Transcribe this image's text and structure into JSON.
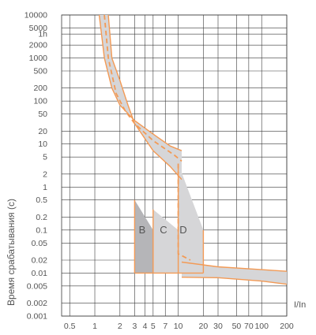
{
  "chart_data": {
    "type": "area",
    "xlabel": "I/In",
    "ylabel": "Время срабатывания (с)",
    "x_scale": "log",
    "y_scale": "log",
    "xlim": [
      0.4,
      200
    ],
    "ylim": [
      0.001,
      10000
    ],
    "grid": true,
    "x_ticks": [
      0.5,
      1,
      2,
      3,
      4,
      5,
      7,
      10,
      20,
      30,
      50,
      70,
      100,
      200
    ],
    "x_tick_labels": [
      "0.5",
      "1",
      "2",
      "3",
      "4",
      "5",
      "7",
      "10",
      "20",
      "30",
      "50",
      "70",
      "100",
      "200"
    ],
    "y_ticks": [
      10000,
      5000,
      3600,
      2000,
      1000,
      500,
      200,
      100,
      50,
      20,
      10,
      5,
      2,
      1,
      0.5,
      0.2,
      0.1,
      0.05,
      0.02,
      0.01,
      0.005,
      0.002,
      0.001
    ],
    "y_tick_labels": [
      "10000",
      "5000",
      "1h",
      "2000",
      "1000",
      "500",
      "200",
      "100",
      "50",
      "20",
      "10",
      "5",
      "2",
      "1",
      "0.5",
      "0.2",
      "0.1",
      "0.05",
      "0.02",
      "0.01",
      "0.005",
      "0.002",
      "0.001"
    ],
    "thermal_band": {
      "upper": [
        [
          1.13,
          10000
        ],
        [
          1.3,
          1000
        ],
        [
          1.6,
          200
        ],
        [
          2.0,
          80
        ],
        [
          3,
          35
        ],
        [
          5,
          17
        ],
        [
          8,
          9
        ],
        [
          11,
          7
        ]
      ],
      "lower": [
        [
          1.45,
          10000
        ],
        [
          1.6,
          1000
        ],
        [
          2.0,
          300
        ],
        [
          2.5,
          80
        ],
        [
          3,
          30
        ],
        [
          5,
          7
        ],
        [
          8,
          3
        ],
        [
          11,
          1.5
        ]
      ],
      "guide_dashed": [
        [
          1.3,
          10000
        ],
        [
          1.45,
          1000
        ],
        [
          1.8,
          150
        ],
        [
          2.3,
          60
        ],
        [
          3,
          30
        ],
        [
          5,
          12
        ],
        [
          9,
          5.5
        ],
        [
          11,
          4
        ]
      ]
    },
    "series": [
      {
        "name": "B",
        "color": "#b5b5b8",
        "instantaneous_range": [
          3,
          5
        ],
        "max_time": [
          0.5,
          0.1
        ],
        "min_time": 0.01
      },
      {
        "name": "C",
        "color": "#d6d6d8",
        "instantaneous_range": [
          5,
          10
        ],
        "max_time": [
          0.3,
          0.1
        ],
        "min_time": 0.01
      },
      {
        "name": "D",
        "color": "#d6d6d8",
        "instantaneous_range": [
          10,
          20
        ],
        "max_time": [
          3.5,
          0.1
        ],
        "min_time": 0.01
      }
    ],
    "tail_band": {
      "upper": [
        [
          11,
          0.018
        ],
        [
          30,
          0.014
        ],
        [
          100,
          0.012
        ],
        [
          200,
          0.011
        ]
      ],
      "lower": [
        [
          11,
          0.008
        ],
        [
          30,
          0.0078
        ],
        [
          100,
          0.0065
        ],
        [
          200,
          0.0055
        ]
      ]
    },
    "colors": {
      "outline": "#f39a55",
      "grid": "#3a3a3a",
      "band_fill": "#d6d6d8",
      "b_fill": "#b5b5b8"
    }
  }
}
